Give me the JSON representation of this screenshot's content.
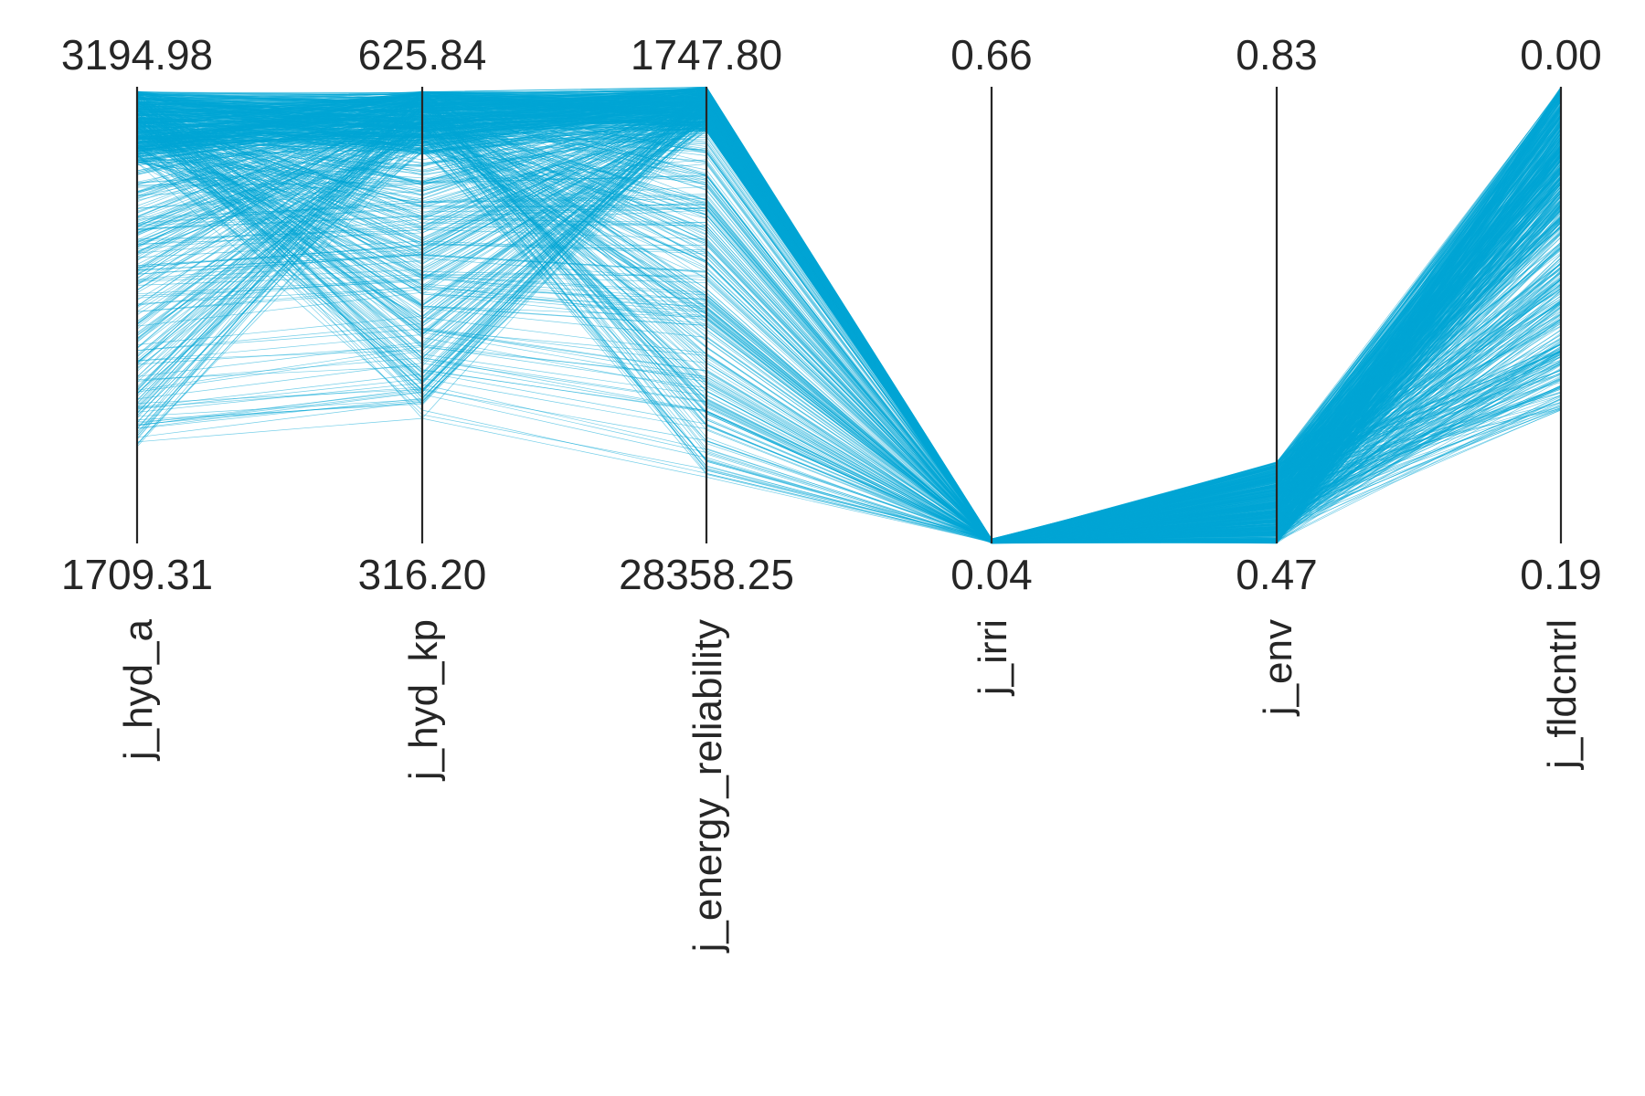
{
  "chart_data": {
    "type": "parallel-coordinates",
    "line_color": "#00a6d6",
    "axes": [
      {
        "name": "j_hyd_a",
        "top": "3194.98",
        "bottom": "1709.31",
        "max": 3194.98,
        "min": 1709.31
      },
      {
        "name": "j_hyd_kp",
        "top": "625.84",
        "bottom": "316.20",
        "max": 625.84,
        "min": 316.2
      },
      {
        "name": "j_energy_reliability",
        "top": "1747.80",
        "bottom": "28358.25",
        "max": 1747.8,
        "min": 28358.25
      },
      {
        "name": "j_irri",
        "top": "0.66",
        "bottom": "0.04",
        "max": 0.66,
        "min": 0.04
      },
      {
        "name": "j_env",
        "top": "0.83",
        "bottom": "0.47",
        "max": 0.83,
        "min": 0.47
      },
      {
        "name": "j_fldcntrl",
        "top": "0.00",
        "bottom": "0.19",
        "max": 0.0,
        "min": 0.19
      }
    ],
    "series_profile": {
      "count": 900,
      "j_hyd_a": {
        "dense_range": [
          0.83,
          0.99
        ],
        "tail_min": 0.22
      },
      "j_hyd_kp": {
        "dense_range": [
          0.85,
          0.99
        ],
        "tail_min": 0.29
      },
      "j_energy_reliability": {
        "dense_range": [
          0.9,
          1.0
        ],
        "tail_min": 0.15
      },
      "j_irri": {
        "range": [
          0.0,
          0.01
        ]
      },
      "j_env": {
        "range": [
          0.0,
          0.18
        ]
      },
      "j_fldcntrl": {
        "dense_range": [
          0.68,
          1.0
        ],
        "tail_min": 0.3
      }
    }
  }
}
